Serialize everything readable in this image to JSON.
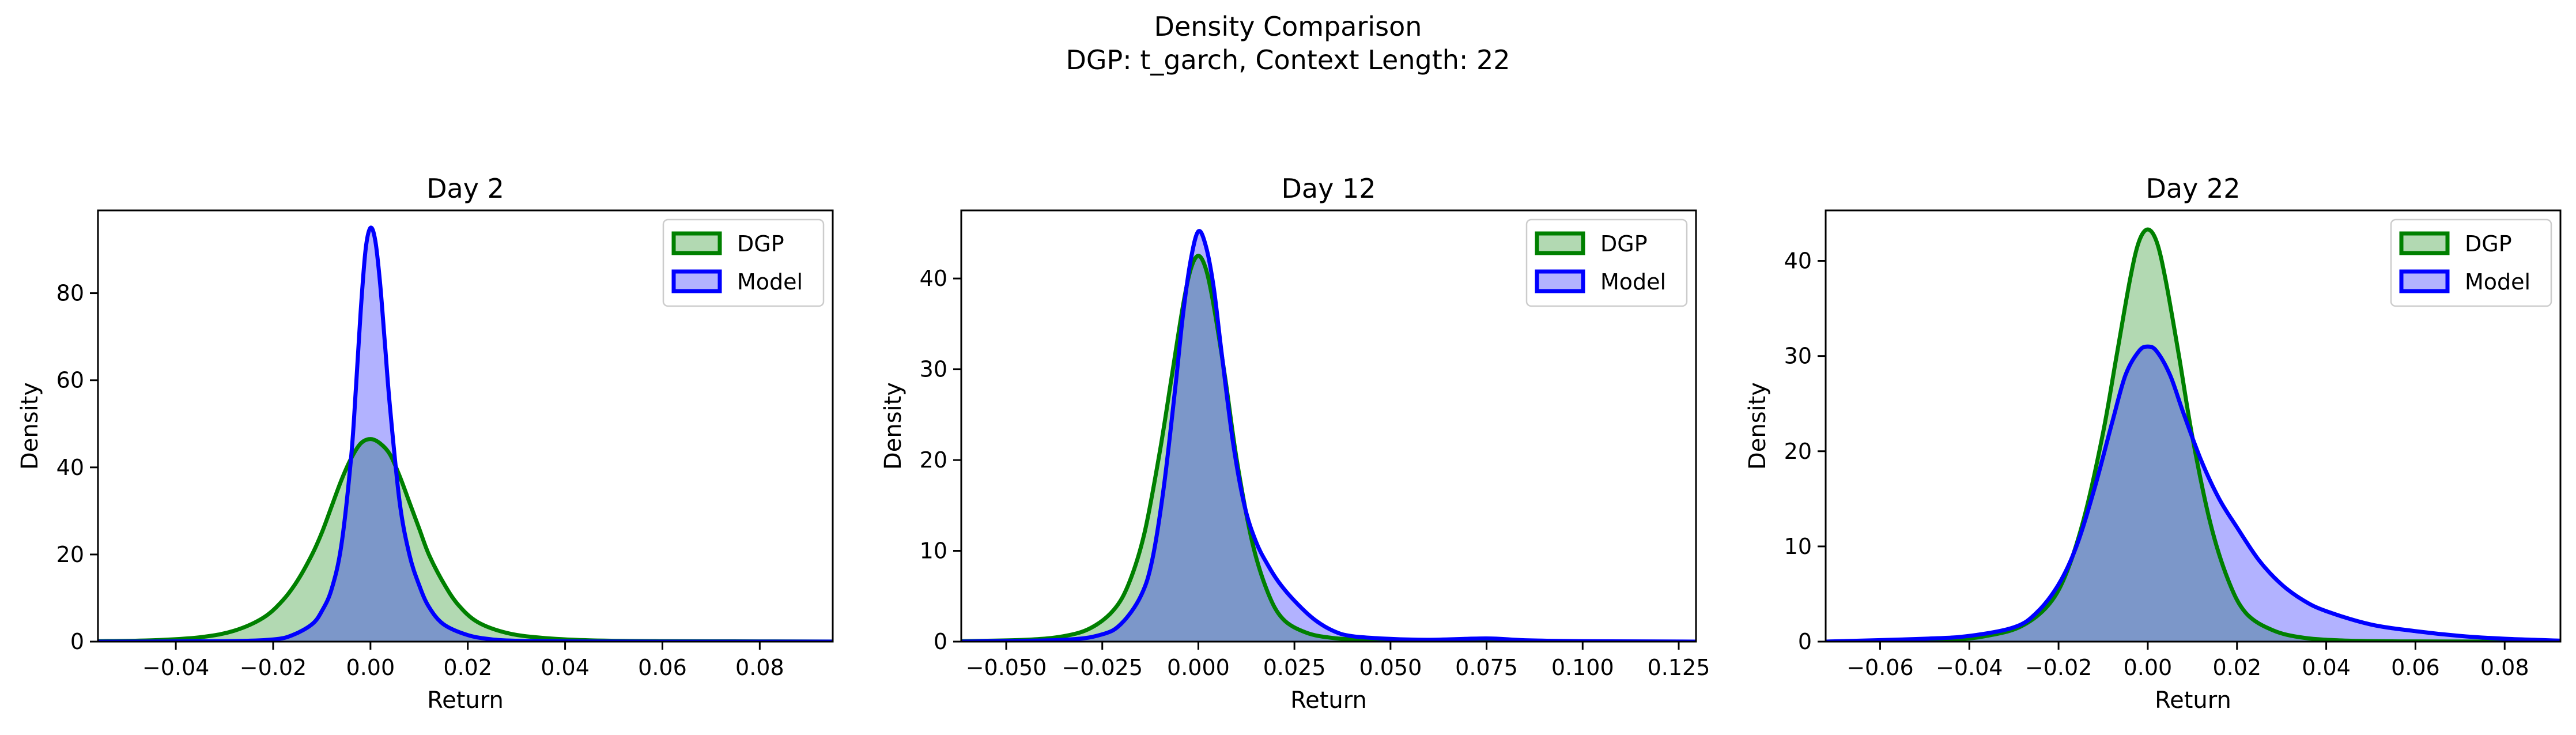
{
  "suptitle": {
    "line1": "Density Comparison",
    "line2": "DGP: t_garch, Context Length: 22"
  },
  "colors": {
    "dgp_line": "#008000",
    "dgp_fill": "#008000",
    "model_line": "#0000ff",
    "model_fill": "#0000ff",
    "axes": "#000000"
  },
  "chart_data": [
    {
      "type": "area",
      "title": "Day 2",
      "xlabel": "Return",
      "ylabel": "Density",
      "xlim": [
        -0.056,
        0.095
      ],
      "ylim": [
        0,
        99
      ],
      "xticks": [
        -0.04,
        -0.02,
        0.0,
        0.02,
        0.04,
        0.06,
        0.08
      ],
      "xtick_labels": [
        "−0.04",
        "−0.02",
        "0.00",
        "0.02",
        "0.04",
        "0.06",
        "0.08"
      ],
      "yticks": [
        0,
        20,
        40,
        60,
        80
      ],
      "ytick_labels": [
        "0",
        "20",
        "40",
        "60",
        "80"
      ],
      "legend": {
        "position": "top-right",
        "entries": [
          "DGP",
          "Model"
        ]
      },
      "series": [
        {
          "name": "DGP",
          "x": [
            -0.056,
            -0.045,
            -0.035,
            -0.028,
            -0.022,
            -0.018,
            -0.015,
            -0.012,
            -0.01,
            -0.008,
            -0.006,
            -0.004,
            -0.002,
            0.0,
            0.002,
            0.004,
            0.006,
            0.008,
            0.01,
            0.012,
            0.015,
            0.018,
            0.022,
            0.028,
            0.035,
            0.045,
            0.06,
            0.08,
            0.095
          ],
          "y": [
            0.1,
            0.3,
            1.0,
            2.5,
            5.5,
            9.5,
            14,
            20,
            25,
            31,
            37,
            42,
            45.5,
            46.5,
            45.5,
            43,
            38,
            32,
            26,
            20,
            13.5,
            8.5,
            4.5,
            2,
            0.9,
            0.3,
            0.1,
            0.05,
            0.02
          ]
        },
        {
          "name": "Model",
          "x": [
            -0.056,
            -0.03,
            -0.02,
            -0.016,
            -0.012,
            -0.01,
            -0.008,
            -0.006,
            -0.004,
            -0.003,
            -0.002,
            -0.001,
            0.0,
            0.001,
            0.002,
            0.003,
            0.004,
            0.006,
            0.008,
            0.01,
            0.012,
            0.015,
            0.02,
            0.025,
            0.03,
            0.04,
            0.06,
            0.095
          ],
          "y": [
            0,
            0.1,
            0.5,
            1.5,
            4,
            7,
            12,
            22,
            42,
            58,
            76,
            90,
            95,
            92,
            82,
            68,
            54,
            32,
            20,
            13,
            8,
            4,
            1.5,
            0.5,
            0.2,
            0.05,
            0,
            0
          ]
        }
      ]
    },
    {
      "type": "area",
      "title": "Day 12",
      "xlabel": "Return",
      "ylabel": "Density",
      "xlim": [
        -0.0617,
        0.1295
      ],
      "ylim": [
        0,
        47.5
      ],
      "xticks": [
        -0.05,
        -0.025,
        0.0,
        0.025,
        0.05,
        0.075,
        0.1,
        0.125
      ],
      "xtick_labels": [
        "−0.050",
        "−0.025",
        "0.000",
        "0.025",
        "0.050",
        "0.075",
        "0.100",
        "0.125"
      ],
      "yticks": [
        0,
        10,
        20,
        30,
        40
      ],
      "ytick_labels": [
        "0",
        "10",
        "20",
        "30",
        "40"
      ],
      "legend": {
        "position": "top-right",
        "entries": [
          "DGP",
          "Model"
        ]
      },
      "series": [
        {
          "name": "DGP",
          "x": [
            -0.0617,
            -0.045,
            -0.035,
            -0.028,
            -0.022,
            -0.018,
            -0.014,
            -0.01,
            -0.007,
            -0.004,
            -0.002,
            0.0,
            0.002,
            0.004,
            0.007,
            0.01,
            0.014,
            0.018,
            0.022,
            0.028,
            0.035,
            0.045,
            0.06,
            0.09,
            0.1295
          ],
          "y": [
            0.05,
            0.2,
            0.6,
            1.5,
            3.5,
            6.5,
            12,
            21,
            29,
            37,
            41,
            42.5,
            41,
            37,
            29,
            20,
            11,
            5.5,
            2.5,
            1,
            0.4,
            0.15,
            0.05,
            0.02,
            0
          ]
        },
        {
          "name": "Model",
          "x": [
            -0.0617,
            -0.035,
            -0.025,
            -0.02,
            -0.015,
            -0.012,
            -0.009,
            -0.006,
            -0.004,
            -0.002,
            0.0,
            0.002,
            0.004,
            0.006,
            0.009,
            0.012,
            0.015,
            0.018,
            0.021,
            0.025,
            0.03,
            0.035,
            0.04,
            0.05,
            0.06,
            0.075,
            0.085,
            0.1,
            0.1295
          ],
          "y": [
            0,
            0.2,
            0.8,
            2,
            5,
            9,
            17,
            28,
            36,
            42,
            45.2,
            43.5,
            39,
            32,
            22,
            15,
            11,
            8.5,
            6.5,
            4.5,
            2.5,
            1.2,
            0.6,
            0.3,
            0.2,
            0.35,
            0.15,
            0.05,
            0
          ]
        }
      ]
    },
    {
      "type": "area",
      "title": "Day 22",
      "xlabel": "Return",
      "ylabel": "Density",
      "xlim": [
        -0.0722,
        0.0925
      ],
      "ylim": [
        0,
        45.3
      ],
      "xticks": [
        -0.06,
        -0.04,
        -0.02,
        0.0,
        0.02,
        0.04,
        0.06,
        0.08
      ],
      "xtick_labels": [
        "−0.06",
        "−0.04",
        "−0.02",
        "0.00",
        "0.02",
        "0.04",
        "0.06",
        "0.08"
      ],
      "yticks": [
        0,
        10,
        20,
        30,
        40
      ],
      "ytick_labels": [
        "0",
        "10",
        "20",
        "30",
        "40"
      ],
      "legend": {
        "position": "top-right",
        "entries": [
          "DGP",
          "Model"
        ]
      },
      "series": [
        {
          "name": "DGP",
          "x": [
            -0.0722,
            -0.045,
            -0.035,
            -0.028,
            -0.022,
            -0.018,
            -0.014,
            -0.01,
            -0.007,
            -0.004,
            -0.002,
            0.0,
            0.002,
            0.004,
            0.007,
            0.01,
            0.014,
            0.018,
            0.022,
            0.028,
            0.035,
            0.045,
            0.06,
            0.0925
          ],
          "y": [
            0,
            0.2,
            0.7,
            1.7,
            4,
            7.5,
            13.5,
            22,
            30,
            38,
            42,
            43.3,
            42,
            38,
            30,
            21.5,
            12.5,
            6.5,
            3,
            1.2,
            0.4,
            0.1,
            0.02,
            0
          ]
        },
        {
          "name": "Model",
          "x": [
            -0.0722,
            -0.05,
            -0.04,
            -0.03,
            -0.025,
            -0.02,
            -0.016,
            -0.012,
            -0.008,
            -0.005,
            -0.002,
            0.0,
            0.002,
            0.005,
            0.008,
            0.012,
            0.016,
            0.02,
            0.025,
            0.03,
            0.035,
            0.04,
            0.05,
            0.06,
            0.07,
            0.08,
            0.0925
          ],
          "y": [
            0,
            0.3,
            0.6,
            1.5,
            3,
            6,
            10,
            16,
            23,
            28,
            30.5,
            31,
            30.5,
            28,
            24,
            19,
            15,
            12,
            8.5,
            6,
            4.3,
            3.2,
            1.8,
            1.1,
            0.6,
            0.3,
            0.1
          ]
        }
      ]
    }
  ]
}
